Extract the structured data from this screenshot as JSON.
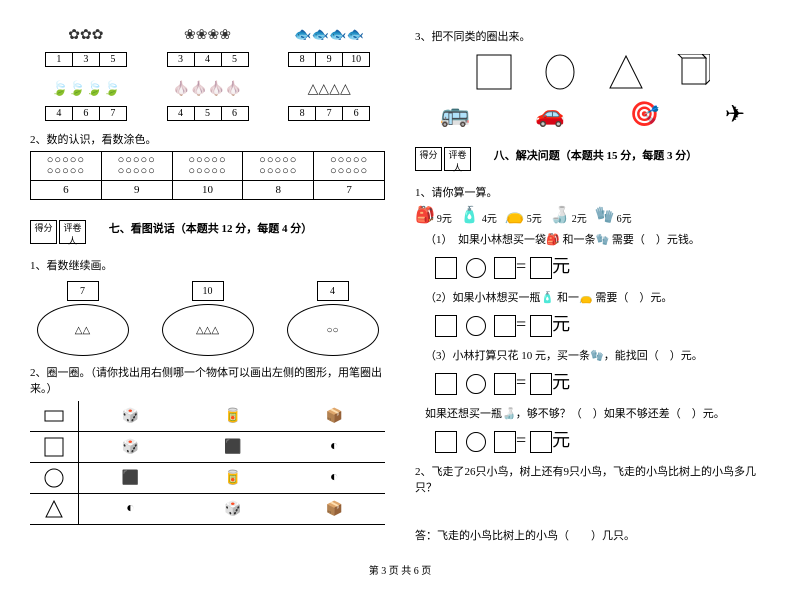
{
  "left": {
    "q1_rows": [
      {
        "groups": [
          {
            "nums": [
              "1",
              "3",
              "5"
            ],
            "icon": "✿✿✿"
          },
          {
            "nums": [
              "3",
              "4",
              "5"
            ],
            "icon": "❀❀❀❀"
          },
          {
            "nums": [
              "8",
              "9",
              "10"
            ],
            "icon": "🐟🐟🐟🐟"
          }
        ]
      },
      {
        "groups": [
          {
            "nums": [
              "4",
              "6",
              "7"
            ],
            "icon": "🍃🍃🍃🍃"
          },
          {
            "nums": [
              "4",
              "5",
              "6"
            ],
            "icon": "🧄🧄🧄🧄"
          },
          {
            "nums": [
              "8",
              "7",
              "6"
            ],
            "icon": "△△△△"
          }
        ]
      }
    ],
    "q2_label": "2、数的认识，看数涂色。",
    "q2_table": {
      "circles": [
        "○○○○○\n○○○○○",
        "○○○○○\n○○○○○",
        "○○○○○\n○○○○○",
        "○○○○○\n○○○○○",
        "○○○○○\n○○○○○"
      ],
      "nums": [
        "6",
        "9",
        "10",
        "8",
        "7"
      ]
    },
    "score_labels": {
      "a": "得分",
      "b": "评卷人"
    },
    "section7_title": "七、看图说话（本题共 12 分，每题 4 分）",
    "s7_q1": "1、看数继续画。",
    "s7_q1_items": [
      {
        "num": "7",
        "content": "△△"
      },
      {
        "num": "10",
        "content": "△△△"
      },
      {
        "num": "4",
        "content": "○○"
      }
    ],
    "s7_q2": "2、圈一圈。（请你找出用右侧哪一个物体可以画出左侧的图形，用笔圈出来。）",
    "shapes_table": [
      {
        "left": "rect",
        "objs": [
          "🎲",
          "🥫",
          "📦"
        ]
      },
      {
        "left": "square",
        "objs": [
          "🎲",
          "⬛",
          "◐"
        ]
      },
      {
        "left": "circle",
        "objs": [
          "⬛",
          "🥫",
          "◐"
        ]
      },
      {
        "left": "triangle",
        "objs": [
          "◐",
          "🎲",
          "📦"
        ]
      }
    ]
  },
  "right": {
    "q3_label": "3、把不同类的圈出来。",
    "shapes": [
      "square",
      "ellipse",
      "triangle",
      "cube"
    ],
    "vehicles": [
      "🚌",
      "🚗",
      "🎯",
      "✈"
    ],
    "score_labels": {
      "a": "得分",
      "b": "评卷人"
    },
    "section8_title": "八、解决问题（本题共 15 分，每题 3 分）",
    "s8_q1": "1、请你算一算。",
    "items": [
      {
        "icon": "🎒",
        "price": "9元"
      },
      {
        "icon": "🧴",
        "price": "4元"
      },
      {
        "icon": "👝",
        "price": "5元"
      },
      {
        "icon": "🍶",
        "price": "2元"
      },
      {
        "icon": "🧤",
        "price": "6元"
      }
    ],
    "sub1": "（1）　如果小林想买一袋🎒 和一条🧤 需要（　）元钱。",
    "sub2": "（2）如果小林想买一瓶🧴 和一👝 需要（　）元。",
    "sub3": "（3）小林打算只花 10 元，买一条🧤，能找回（　）元。",
    "sub4a": "如果还想买一瓶🍶，够不够？（　）如果不够还差（　）元。",
    "yuan": "元",
    "s8_q2": "2、飞走了26只小鸟，树上还有9只小鸟，飞走的小鸟比树上的小鸟多几只？",
    "answer": "答：飞走的小鸟比树上的小鸟（　　）几只。"
  },
  "footer": "第 3 页  共 6 页"
}
